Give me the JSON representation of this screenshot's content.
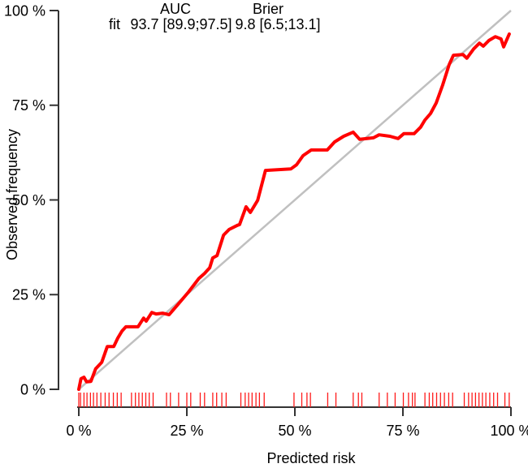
{
  "colors": {
    "curve": "#ff0000",
    "reference_line": "#c0c0c0",
    "rug": "#ff1a1a",
    "axis": "#333333",
    "text": "#000000"
  },
  "chart_data": {
    "type": "line",
    "title": "",
    "xlabel": "Predicted risk",
    "ylabel": "Observed frequency",
    "xlim": [
      0,
      100
    ],
    "ylim": [
      0,
      100
    ],
    "grid": "off",
    "x_ticks": [
      0,
      25,
      50,
      75,
      100
    ],
    "x_tick_labels": [
      "0 %",
      "25 %",
      "50 %",
      "75 %",
      "100 %"
    ],
    "y_ticks": [
      0,
      25,
      50,
      75,
      100
    ],
    "y_tick_labels": [
      "0 %",
      "25 %",
      "50 %",
      "75 %",
      "100 %"
    ],
    "annotation": {
      "auc_header": "AUC",
      "brier_header": "Brier",
      "row_label": "fit",
      "auc_value": "93.7 [89.9;97.5]",
      "brier_value": "9.8 [6.5;13.1]"
    },
    "series": [
      {
        "name": "calibration-curve",
        "color": "#ff0000",
        "points": [
          [
            0,
            0
          ],
          [
            0.5,
            2.8
          ],
          [
            1.2,
            3.2
          ],
          [
            1.8,
            2.0
          ],
          [
            2.8,
            2.1
          ],
          [
            3.9,
            5.4
          ],
          [
            5.3,
            7.1
          ],
          [
            6.6,
            11.3
          ],
          [
            8.1,
            11.3
          ],
          [
            9.0,
            13.5
          ],
          [
            10.0,
            15.4
          ],
          [
            10.9,
            16.5
          ],
          [
            13.7,
            16.5
          ],
          [
            15.0,
            18.8
          ],
          [
            15.6,
            18.0
          ],
          [
            16.9,
            20.3
          ],
          [
            17.9,
            19.9
          ],
          [
            19.4,
            20.1
          ],
          [
            20.9,
            19.7
          ],
          [
            22.7,
            22.1
          ],
          [
            25.4,
            25.7
          ],
          [
            27.8,
            29.3
          ],
          [
            29.1,
            30.6
          ],
          [
            30.3,
            32.1
          ],
          [
            31.0,
            34.7
          ],
          [
            32.0,
            35.3
          ],
          [
            33.5,
            40.7
          ],
          [
            34.8,
            42.2
          ],
          [
            36.7,
            43.3
          ],
          [
            37.2,
            43.5
          ],
          [
            38.7,
            48.2
          ],
          [
            39.7,
            46.7
          ],
          [
            41.4,
            49.9
          ],
          [
            43.2,
            57.8
          ],
          [
            49.1,
            58.2
          ],
          [
            50.4,
            59.3
          ],
          [
            51.9,
            61.7
          ],
          [
            53.8,
            63.2
          ],
          [
            57.5,
            63.2
          ],
          [
            59.2,
            65.3
          ],
          [
            61.3,
            66.8
          ],
          [
            63.5,
            67.9
          ],
          [
            65.0,
            66.0
          ],
          [
            68.2,
            66.4
          ],
          [
            69.5,
            67.2
          ],
          [
            72.0,
            66.8
          ],
          [
            73.9,
            66.2
          ],
          [
            75.2,
            67.5
          ],
          [
            77.6,
            67.5
          ],
          [
            79.1,
            69.2
          ],
          [
            80.1,
            71.1
          ],
          [
            81.4,
            72.8
          ],
          [
            82.7,
            75.6
          ],
          [
            84.2,
            80.3
          ],
          [
            85.7,
            85.7
          ],
          [
            86.7,
            88.2
          ],
          [
            88.9,
            88.4
          ],
          [
            89.8,
            87.4
          ],
          [
            91.4,
            89.9
          ],
          [
            92.7,
            91.4
          ],
          [
            93.6,
            90.6
          ],
          [
            94.9,
            92.1
          ],
          [
            96.4,
            93.1
          ],
          [
            97.7,
            92.5
          ],
          [
            98.3,
            90.4
          ],
          [
            99.6,
            93.8
          ]
        ]
      },
      {
        "name": "ideal-reference-line",
        "color": "#c0c0c0",
        "points": [
          [
            0,
            0
          ],
          [
            100,
            100
          ]
        ]
      }
    ],
    "rug_x": [
      0,
      0.4,
      1.2,
      1.9,
      2.7,
      3.4,
      4.2,
      5.1,
      6.1,
      7.0,
      8.0,
      8.9,
      9.8,
      12.2,
      13.1,
      13.9,
      14.7,
      15.5,
      16.3,
      17.2,
      20.3,
      21.2,
      23.1,
      25.0,
      25.9,
      28.1,
      29.1,
      31.0,
      31.9,
      33.1,
      34.1,
      37.5,
      38.5,
      39.3,
      40.1,
      41.0,
      41.8,
      42.9,
      49.8,
      51.6,
      52.8,
      53.6,
      57.6,
      59.5,
      63.5,
      64.7,
      65.5,
      69.5,
      71.4,
      73.2,
      75.1,
      76.3,
      77.2,
      77.8,
      80.1,
      81.1,
      81.9,
      82.8,
      83.7,
      84.6,
      85.6,
      86.5,
      89.2,
      90.2,
      91.0,
      91.8,
      92.6,
      93.4,
      94.2,
      95.1,
      96.0,
      96.9,
      98.6,
      99.6
    ]
  }
}
